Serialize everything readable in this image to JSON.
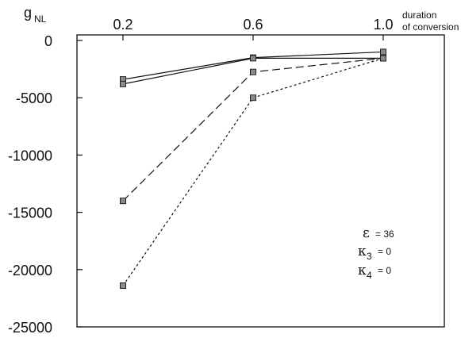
{
  "chart_data": {
    "type": "line",
    "title": "",
    "ylabel": "g",
    "ylabel_sub": "NL",
    "xlabel_line1": "duration",
    "xlabel_line2": "of conversion",
    "x_axis_position": "top",
    "x": [
      0.2,
      0.6,
      1.0
    ],
    "x_tick_labels": [
      "0.2",
      "0.6",
      "1.0"
    ],
    "y_ticks": [
      0,
      -5000,
      -10000,
      -15000,
      -20000,
      -25000
    ],
    "y_tick_labels": [
      "0",
      "-5000",
      "-10000",
      "-15000",
      "-20000",
      "-25000"
    ],
    "ylim": [
      -25000,
      0
    ],
    "xlim": [
      0.2,
      1.0
    ],
    "grid": false,
    "series": [
      {
        "style": "solid",
        "color": "#111111",
        "values": [
          -3400,
          -1500,
          -1000
        ]
      },
      {
        "style": "solid",
        "color": "#111111",
        "values": [
          -3800,
          -1550,
          -1550
        ]
      },
      {
        "style": "dashed",
        "color": "#111111",
        "values": [
          -14000,
          -2750,
          -1550
        ]
      },
      {
        "style": "dotted",
        "color": "#111111",
        "values": [
          -21400,
          -5000,
          -1550
        ]
      }
    ],
    "annotations": {
      "epsilon": {
        "symbol": "ε",
        "value": "= 36"
      },
      "kappa3": {
        "symbol": "κ",
        "sub": "3",
        "value": "= 0"
      },
      "kappa4": {
        "symbol": "κ",
        "sub": "4",
        "value": "= 0"
      }
    }
  }
}
